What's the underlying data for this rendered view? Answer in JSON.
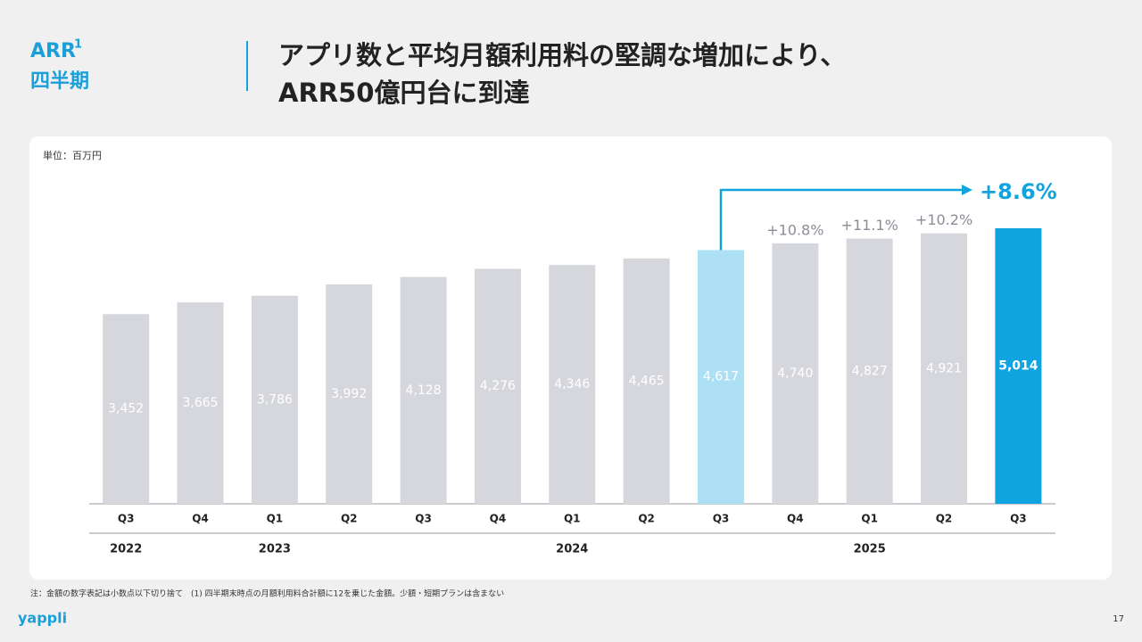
{
  "header": {
    "section": "ARR",
    "section_note": "1",
    "subsection": "四半期",
    "title_lines": [
      "アプリ数と平均月額利用料の堅調な増加により、",
      "ARR50億円台に到達"
    ]
  },
  "chart_data": {
    "type": "bar",
    "unit_label": "単位：百万円",
    "categories": [
      "Q3",
      "Q4",
      "Q1",
      "Q2",
      "Q3",
      "Q4",
      "Q1",
      "Q2",
      "Q3",
      "Q4",
      "Q1",
      "Q2",
      "Q3"
    ],
    "years": [
      "2022",
      null,
      "2023",
      null,
      null,
      null,
      "2024",
      null,
      null,
      null,
      "2025",
      null,
      null
    ],
    "values": [
      3452,
      3665,
      3786,
      3992,
      4128,
      4276,
      4346,
      4465,
      4617,
      4740,
      4827,
      4921,
      5014
    ],
    "value_labels": [
      "3,452",
      "3,665",
      "3,786",
      "3,992",
      "4,128",
      "4,276",
      "4,346",
      "4,465",
      "4,617",
      "4,740",
      "4,827",
      "4,921",
      "5,014"
    ],
    "colors": [
      "#d6d7dc",
      "#d6d7dc",
      "#d6d7dc",
      "#d6d7dc",
      "#d6d7dc",
      "#d6d7dc",
      "#d6d7dc",
      "#d6d7dc",
      "#aee0f5",
      "#d6d7dc",
      "#d6d7dc",
      "#d6d7dc",
      "#0fa3e0"
    ],
    "growth_labels": [
      null,
      null,
      null,
      null,
      null,
      null,
      null,
      null,
      null,
      "+10.8%",
      "+11.1%",
      "+10.2%",
      "+8.6%"
    ]
  },
  "footnote": "注：金額の数字表記は小数点以下切り捨て　(1) 四半期末時点の月額利用料合計額に12を乗じた金額。少額・短期プランは含まない",
  "footer": {
    "logo": "yappli",
    "page": "17"
  }
}
